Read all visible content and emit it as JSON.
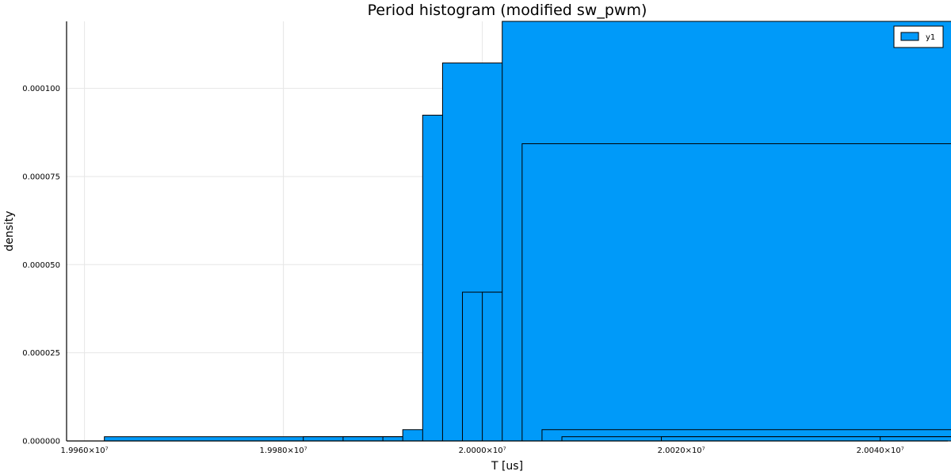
{
  "chart_data": {
    "type": "bar",
    "title": "Period histogram (modified sw_pwm)",
    "xlabel": "T [us]",
    "ylabel": "density",
    "bin_width": 200000,
    "xlim": [
      19958200,
      20046800
    ],
    "ylim": [
      0,
      0.000119
    ],
    "x_ticks": [
      {
        "value": 19960000,
        "label": "1.9960×10⁷"
      },
      {
        "value": 19980000,
        "label": "1.9980×10⁷"
      },
      {
        "value": 20000000,
        "label": "2.0000×10⁷"
      },
      {
        "value": 20020000,
        "label": "2.0020×10⁷"
      },
      {
        "value": 20040000,
        "label": "2.0040×10⁷"
      }
    ],
    "y_ticks": [
      {
        "value": 0,
        "label": "0.000000"
      },
      {
        "value": 2.5e-05,
        "label": "0.000025"
      },
      {
        "value": 5e-05,
        "label": "0.000050"
      },
      {
        "value": 7.5e-05,
        "label": "0.000075"
      },
      {
        "value": 0.0001,
        "label": "0.000100"
      }
    ],
    "grid": true,
    "legend_position": "top-right",
    "series": [
      {
        "name": "y1",
        "color": "#009af9",
        "bins": [
          {
            "start": 19962000,
            "value": 1.2e-06
          },
          {
            "start": 19982000,
            "value": 1.2e-06
          },
          {
            "start": 19986000,
            "value": 1.2e-06
          },
          {
            "start": 19990000,
            "value": 1.2e-06
          },
          {
            "start": 19992000,
            "value": 3.2e-06
          },
          {
            "start": 19994000,
            "value": 9.24e-05
          },
          {
            "start": 19996000,
            "value": 0.0001072
          },
          {
            "start": 19998000,
            "value": 4.22e-05
          },
          {
            "start": 20000000,
            "value": 4.22e-05
          },
          {
            "start": 20002000,
            "value": 0.000119
          },
          {
            "start": 20004000,
            "value": 8.43e-05
          },
          {
            "start": 20006000,
            "value": 3.2e-06
          },
          {
            "start": 20008000,
            "value": 1.2e-06
          },
          {
            "start": 20018000,
            "value": 1.2e-06
          },
          {
            "start": 20040000,
            "value": 1.2e-06
          }
        ]
      }
    ]
  }
}
